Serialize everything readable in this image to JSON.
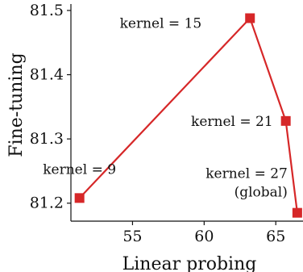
{
  "chart_data": {
    "type": "line",
    "xlabel": "Linear probing",
    "ylabel": "Fine-tuning",
    "xlim": [
      50.7,
      66.9
    ],
    "ylim": [
      81.172,
      81.51
    ],
    "xticks": [
      55,
      60,
      65
    ],
    "yticks": [
      81.2,
      81.3,
      81.4,
      81.5
    ],
    "grid": false,
    "color": "#d62728",
    "series": [
      {
        "points": [
          {
            "x": 51.3,
            "y": 81.208,
            "label": "kernel = 9"
          },
          {
            "x": 63.2,
            "y": 81.488,
            "label": "kernel = 15"
          },
          {
            "x": 65.7,
            "y": 81.328,
            "label": "kernel = 21"
          },
          {
            "x": 66.5,
            "y": 81.185,
            "label": "kernel = 27",
            "label2": "(global)"
          }
        ]
      }
    ]
  }
}
